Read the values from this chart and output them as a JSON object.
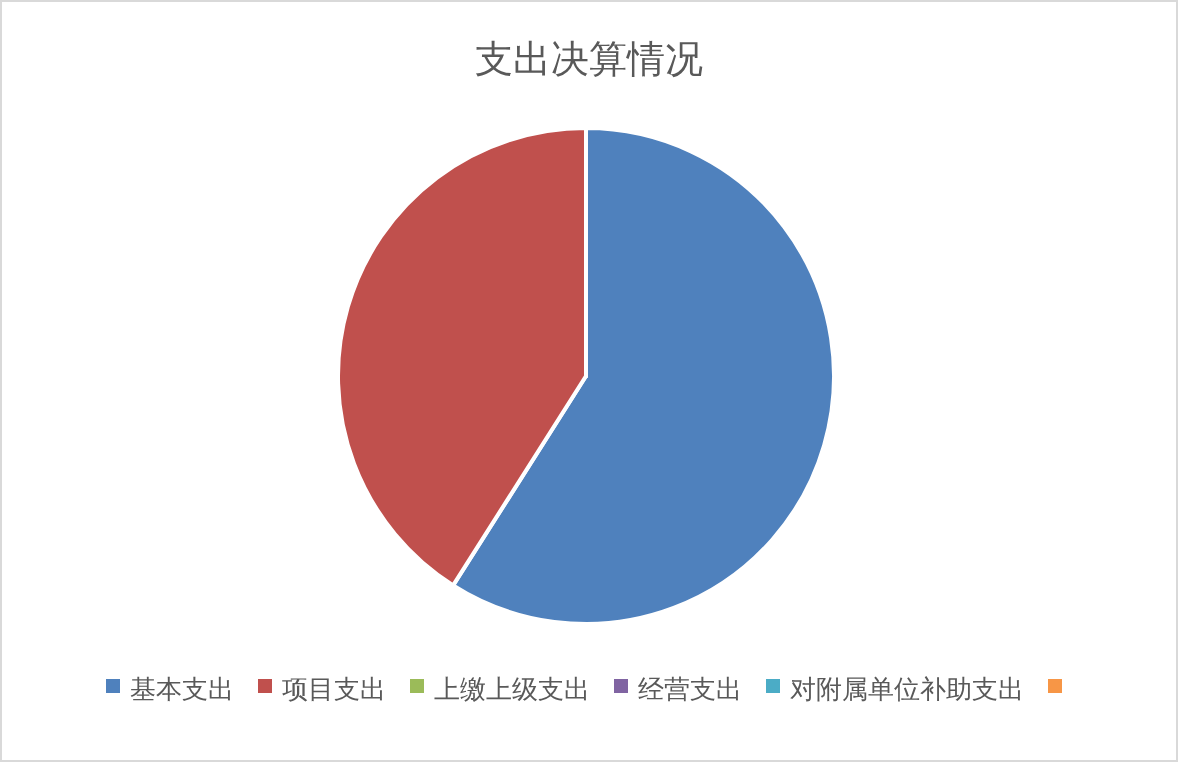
{
  "chart_data": {
    "type": "pie",
    "title": "支出决算情况",
    "categories": [
      "基本支出",
      "项目支出",
      "上缴上级支出",
      "经营支出",
      "对附属单位补助支出",
      null
    ],
    "values": [
      59,
      41,
      0,
      0,
      0,
      0
    ],
    "colors": [
      "#4f81bd",
      "#c0504d",
      "#9bbb59",
      "#8064a2",
      "#4bacc6",
      "#f79646"
    ],
    "legend": "bottom"
  }
}
